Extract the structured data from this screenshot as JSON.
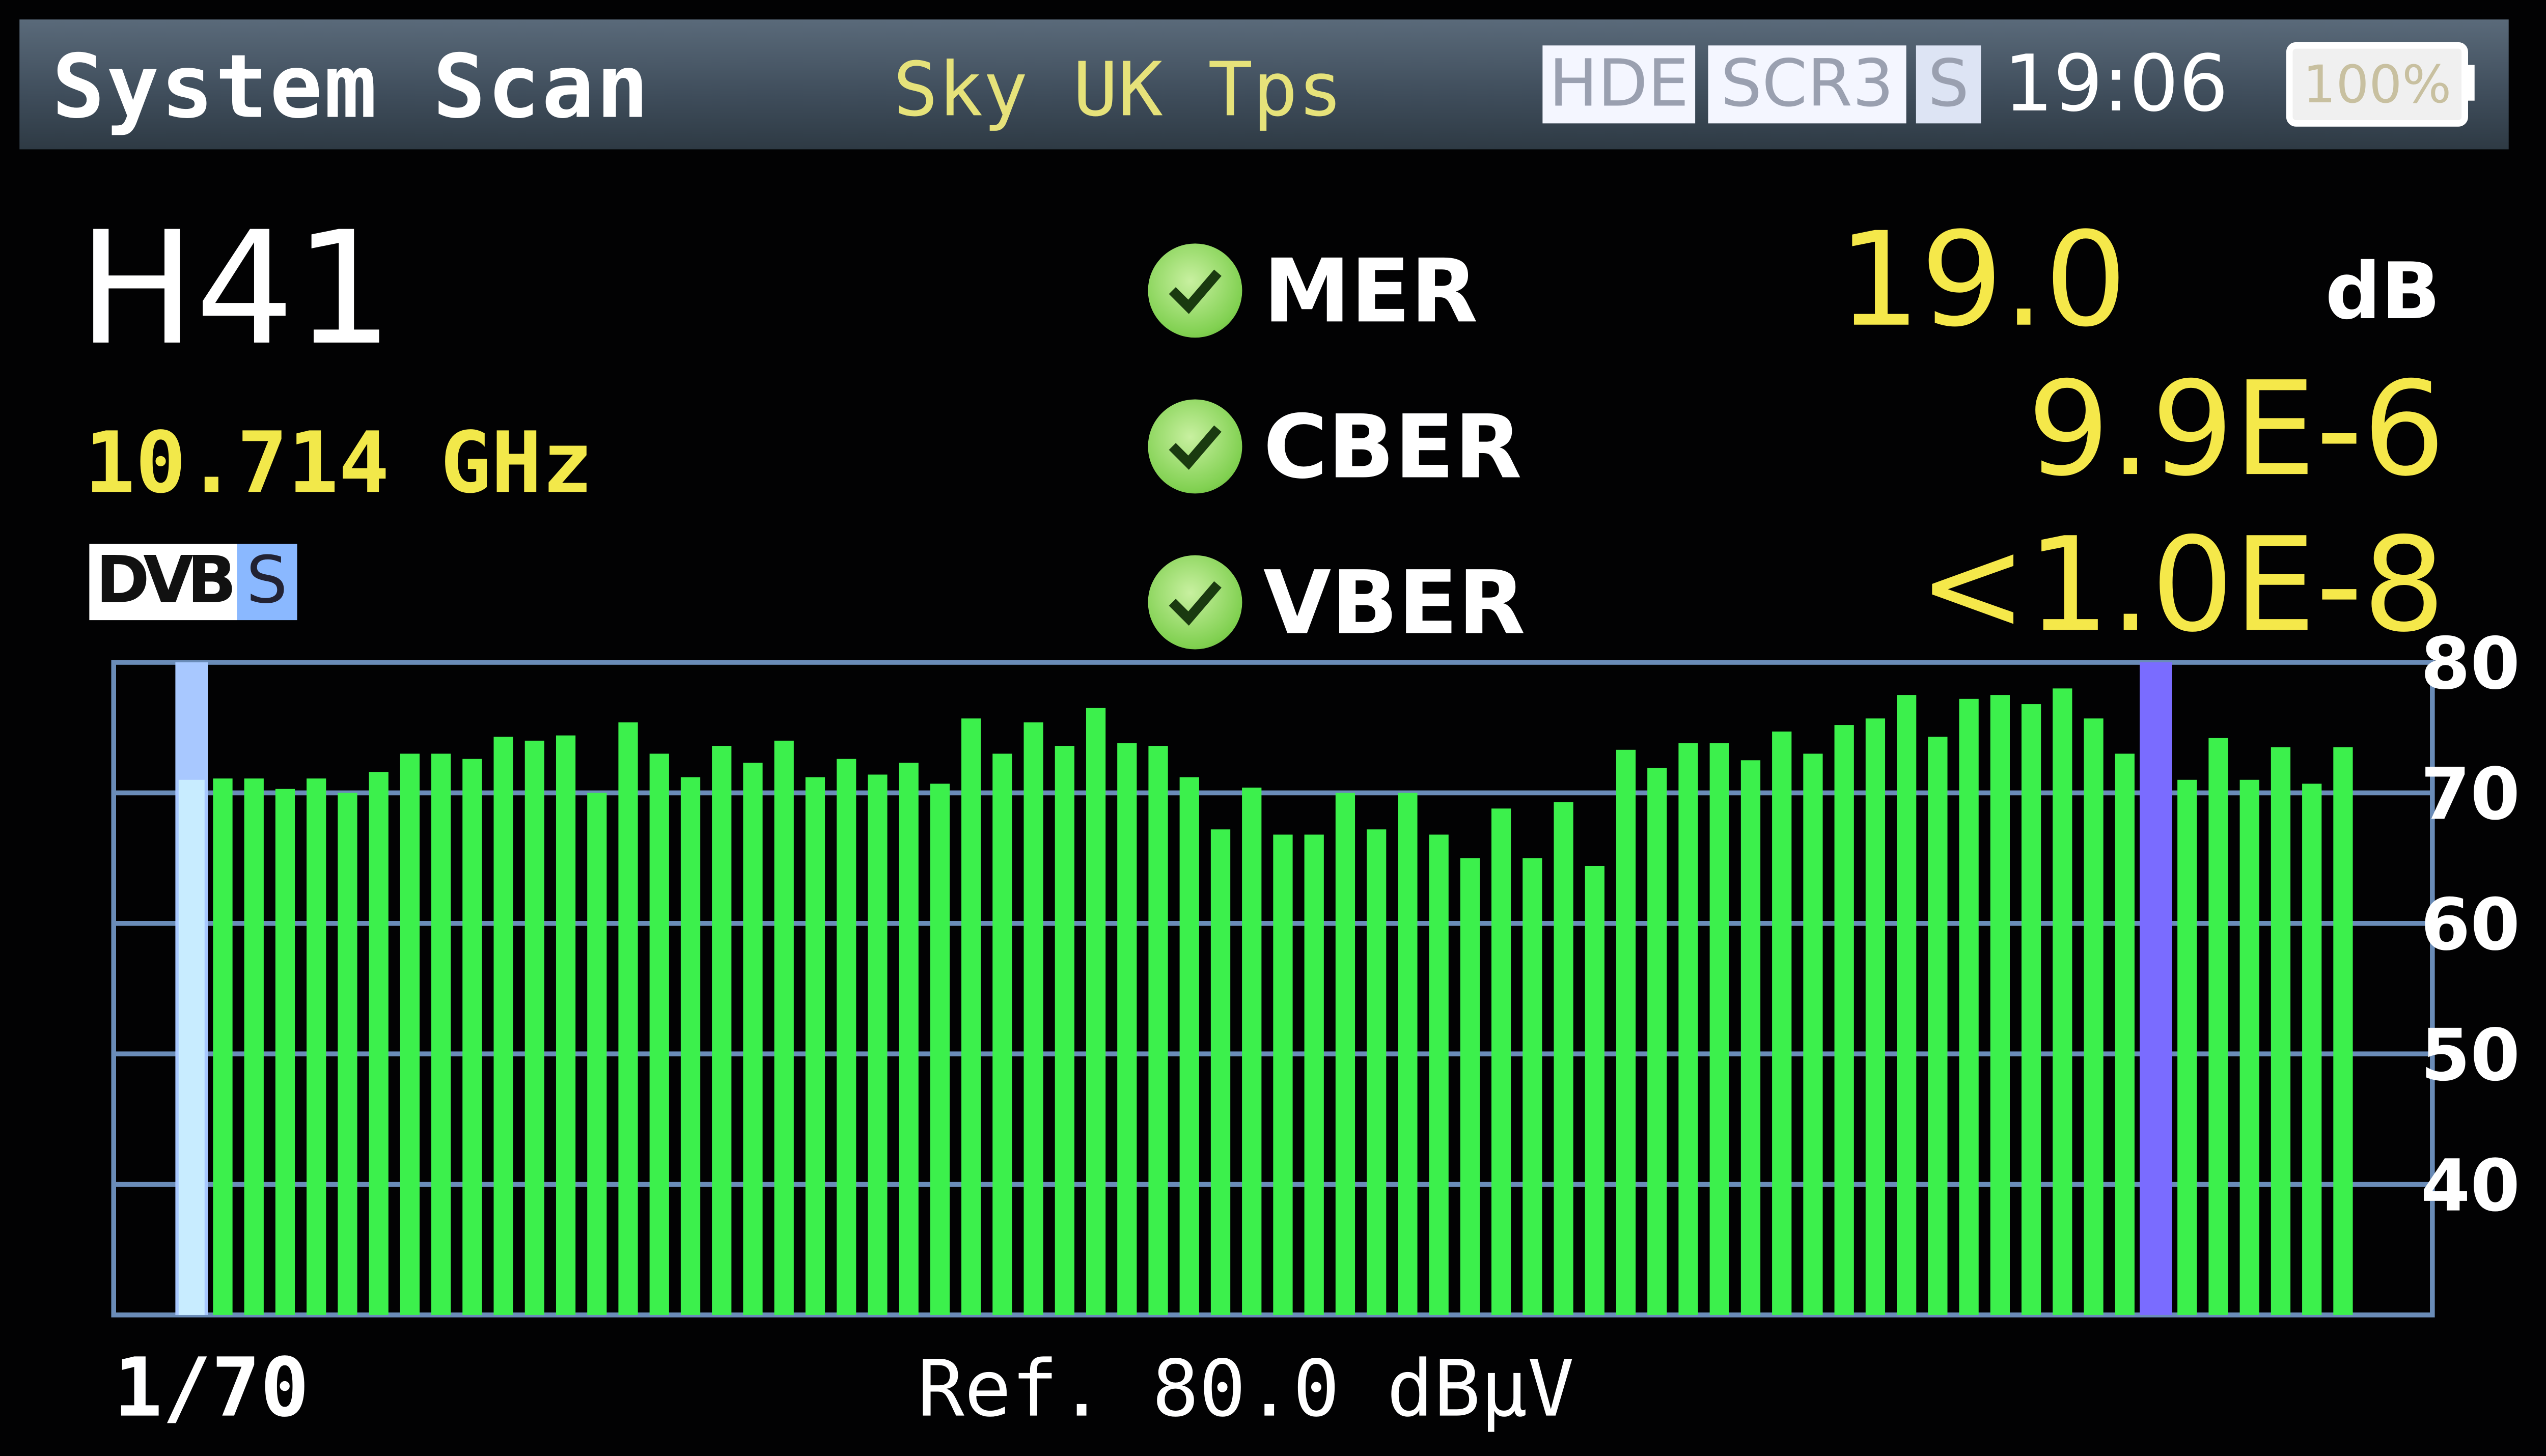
{
  "header": {
    "title": "System Scan",
    "subtitle": "Sky UK Tps",
    "badges": [
      "HDE",
      "SCR3",
      "S"
    ],
    "time": "19:06",
    "battery": "100%"
  },
  "channel": {
    "name": "H41",
    "frequency": "10.714 GHz",
    "standard_logo": "DVB",
    "standard_suffix": "S"
  },
  "measurements": [
    {
      "label": "MER",
      "value": "19.0",
      "unit": "dB",
      "status_icon": "check-icon"
    },
    {
      "label": "CBER",
      "value": "9.9E-6",
      "status_icon": "check-icon"
    },
    {
      "label": "VBER",
      "value": "<1.0E-8",
      "status_icon": "check-icon"
    }
  ],
  "footer": {
    "count": "1/70",
    "reference": "Ref. 80.0 dBµV"
  },
  "colors": {
    "bar": "#3cf04c",
    "selected_marker": "#c8ecff",
    "second_marker": "#7a6cff",
    "grid": "#6a8cb8",
    "value_yellow": "#f5e84a"
  },
  "chart_data": {
    "type": "bar",
    "ylim": [
      30,
      80
    ],
    "yticks": [
      80,
      70,
      60,
      50,
      40
    ],
    "grid": true,
    "selected_channel": 1,
    "marker_channel": 64,
    "values": [
      71.0,
      71.1,
      71.1,
      70.3,
      71.1,
      70.0,
      71.6,
      73.0,
      73.0,
      72.6,
      74.3,
      74.0,
      74.4,
      70.0,
      75.4,
      73.0,
      71.2,
      73.6,
      72.3,
      74.0,
      71.2,
      72.6,
      71.4,
      72.3,
      70.7,
      75.7,
      73.0,
      75.4,
      73.6,
      76.5,
      73.8,
      73.6,
      71.2,
      67.2,
      70.4,
      66.8,
      66.8,
      70.0,
      67.2,
      70.0,
      66.8,
      65.0,
      68.8,
      65.0,
      69.3,
      64.4,
      73.3,
      71.9,
      73.8,
      73.8,
      72.5,
      74.7,
      73.0,
      75.2,
      75.7,
      77.5,
      74.3,
      77.2,
      77.5,
      76.8,
      78.0,
      75.7,
      73.0,
      null,
      71.0,
      74.2,
      71.0,
      73.5,
      70.7,
      73.5
    ]
  }
}
